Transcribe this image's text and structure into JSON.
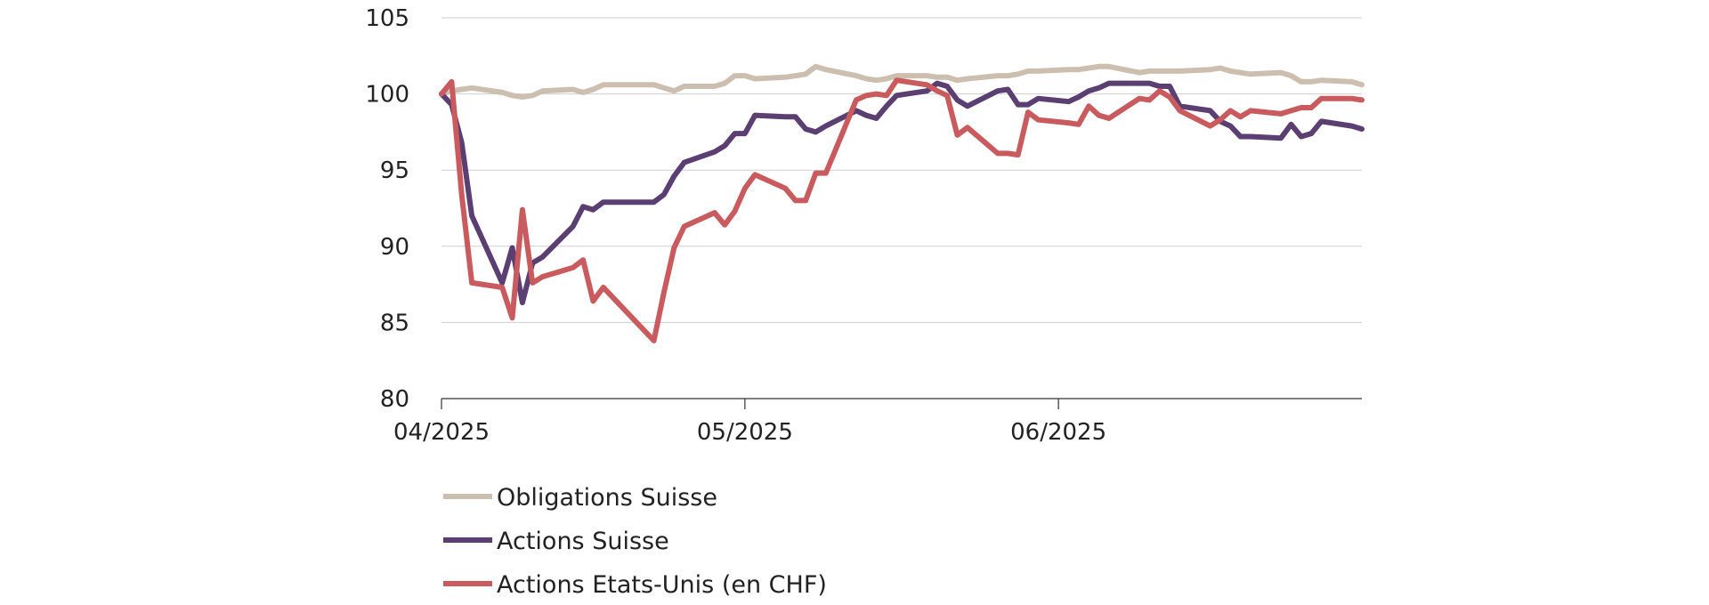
{
  "chart_data": {
    "type": "line",
    "title": "",
    "xlabel": "",
    "ylabel": "",
    "xlim": [
      "2025-04-01",
      "2025-07-01"
    ],
    "ylim": [
      80,
      105
    ],
    "yticks": [
      80,
      85,
      90,
      95,
      100,
      105
    ],
    "xticks": [
      {
        "date": "2025-04-01",
        "label": "04/2025"
      },
      {
        "date": "2025-05-01",
        "label": "05/2025"
      },
      {
        "date": "2025-06-01",
        "label": "06/2025"
      }
    ],
    "grid": "horizontal",
    "legend_position": "bottom-left",
    "series": [
      {
        "name": "Obligations Suisse",
        "color": "#cdbfb0",
        "points": [
          [
            "2025-04-01",
            100.0
          ],
          [
            "2025-04-02",
            100.2
          ],
          [
            "2025-04-03",
            100.3
          ],
          [
            "2025-04-04",
            100.4
          ],
          [
            "2025-04-07",
            100.1
          ],
          [
            "2025-04-08",
            99.9
          ],
          [
            "2025-04-09",
            99.8
          ],
          [
            "2025-04-10",
            99.9
          ],
          [
            "2025-04-11",
            100.2
          ],
          [
            "2025-04-14",
            100.3
          ],
          [
            "2025-04-15",
            100.1
          ],
          [
            "2025-04-16",
            100.3
          ],
          [
            "2025-04-17",
            100.6
          ],
          [
            "2025-04-22",
            100.6
          ],
          [
            "2025-04-23",
            100.4
          ],
          [
            "2025-04-24",
            100.2
          ],
          [
            "2025-04-25",
            100.5
          ],
          [
            "2025-04-28",
            100.5
          ],
          [
            "2025-04-29",
            100.7
          ],
          [
            "2025-04-30",
            101.2
          ],
          [
            "2025-05-01",
            101.2
          ],
          [
            "2025-05-02",
            101.0
          ],
          [
            "2025-05-05",
            101.1
          ],
          [
            "2025-05-06",
            101.2
          ],
          [
            "2025-05-07",
            101.3
          ],
          [
            "2025-05-08",
            101.8
          ],
          [
            "2025-05-09",
            101.6
          ],
          [
            "2025-05-12",
            101.2
          ],
          [
            "2025-05-13",
            101.0
          ],
          [
            "2025-05-14",
            100.9
          ],
          [
            "2025-05-15",
            101.0
          ],
          [
            "2025-05-16",
            101.2
          ],
          [
            "2025-05-19",
            101.2
          ],
          [
            "2025-05-20",
            101.1
          ],
          [
            "2025-05-21",
            101.1
          ],
          [
            "2025-05-22",
            100.9
          ],
          [
            "2025-05-23",
            101.0
          ],
          [
            "2025-05-26",
            101.2
          ],
          [
            "2025-05-27",
            101.2
          ],
          [
            "2025-05-28",
            101.3
          ],
          [
            "2025-05-29",
            101.5
          ],
          [
            "2025-05-30",
            101.5
          ],
          [
            "2025-06-02",
            101.6
          ],
          [
            "2025-06-03",
            101.6
          ],
          [
            "2025-06-04",
            101.7
          ],
          [
            "2025-06-05",
            101.8
          ],
          [
            "2025-06-06",
            101.8
          ],
          [
            "2025-06-09",
            101.4
          ],
          [
            "2025-06-10",
            101.5
          ],
          [
            "2025-06-11",
            101.5
          ],
          [
            "2025-06-12",
            101.5
          ],
          [
            "2025-06-13",
            101.5
          ],
          [
            "2025-06-16",
            101.6
          ],
          [
            "2025-06-17",
            101.7
          ],
          [
            "2025-06-18",
            101.5
          ],
          [
            "2025-06-19",
            101.4
          ],
          [
            "2025-06-20",
            101.3
          ],
          [
            "2025-06-23",
            101.4
          ],
          [
            "2025-06-24",
            101.2
          ],
          [
            "2025-06-25",
            100.8
          ],
          [
            "2025-06-26",
            100.8
          ],
          [
            "2025-06-27",
            100.9
          ],
          [
            "2025-06-30",
            100.8
          ],
          [
            "2025-07-01",
            100.6
          ]
        ]
      },
      {
        "name": "Actions Suisse",
        "color": "#5b3f72",
        "points": [
          [
            "2025-04-01",
            100.0
          ],
          [
            "2025-04-02",
            99.3
          ],
          [
            "2025-04-03",
            96.8
          ],
          [
            "2025-04-04",
            92.0
          ],
          [
            "2025-04-07",
            87.6
          ],
          [
            "2025-04-08",
            89.9
          ],
          [
            "2025-04-09",
            86.3
          ],
          [
            "2025-04-10",
            88.9
          ],
          [
            "2025-04-11",
            89.3
          ],
          [
            "2025-04-14",
            91.3
          ],
          [
            "2025-04-15",
            92.6
          ],
          [
            "2025-04-16",
            92.4
          ],
          [
            "2025-04-17",
            92.9
          ],
          [
            "2025-04-22",
            92.9
          ],
          [
            "2025-04-23",
            93.4
          ],
          [
            "2025-04-24",
            94.6
          ],
          [
            "2025-04-25",
            95.5
          ],
          [
            "2025-04-28",
            96.2
          ],
          [
            "2025-04-29",
            96.6
          ],
          [
            "2025-04-30",
            97.4
          ],
          [
            "2025-05-01",
            97.4
          ],
          [
            "2025-05-02",
            98.6
          ],
          [
            "2025-05-05",
            98.5
          ],
          [
            "2025-05-06",
            98.5
          ],
          [
            "2025-05-07",
            97.7
          ],
          [
            "2025-05-08",
            97.5
          ],
          [
            "2025-05-09",
            97.9
          ],
          [
            "2025-05-12",
            98.9
          ],
          [
            "2025-05-13",
            98.6
          ],
          [
            "2025-05-14",
            98.4
          ],
          [
            "2025-05-15",
            99.2
          ],
          [
            "2025-05-16",
            99.9
          ],
          [
            "2025-05-19",
            100.2
          ],
          [
            "2025-05-20",
            100.7
          ],
          [
            "2025-05-21",
            100.5
          ],
          [
            "2025-05-22",
            99.6
          ],
          [
            "2025-05-23",
            99.2
          ],
          [
            "2025-05-26",
            100.2
          ],
          [
            "2025-05-27",
            100.3
          ],
          [
            "2025-05-28",
            99.3
          ],
          [
            "2025-05-29",
            99.3
          ],
          [
            "2025-05-30",
            99.7
          ],
          [
            "2025-06-02",
            99.5
          ],
          [
            "2025-06-03",
            99.8
          ],
          [
            "2025-06-04",
            100.2
          ],
          [
            "2025-06-05",
            100.4
          ],
          [
            "2025-06-06",
            100.7
          ],
          [
            "2025-06-09",
            100.7
          ],
          [
            "2025-06-10",
            100.7
          ],
          [
            "2025-06-11",
            100.5
          ],
          [
            "2025-06-12",
            100.5
          ],
          [
            "2025-06-13",
            99.2
          ],
          [
            "2025-06-16",
            98.9
          ],
          [
            "2025-06-17",
            98.2
          ],
          [
            "2025-06-18",
            97.9
          ],
          [
            "2025-06-19",
            97.2
          ],
          [
            "2025-06-20",
            97.2
          ],
          [
            "2025-06-23",
            97.1
          ],
          [
            "2025-06-24",
            98.0
          ],
          [
            "2025-06-25",
            97.2
          ],
          [
            "2025-06-26",
            97.4
          ],
          [
            "2025-06-27",
            98.2
          ],
          [
            "2025-06-30",
            97.9
          ],
          [
            "2025-07-01",
            97.7
          ]
        ]
      },
      {
        "name": "Actions Etats-Unis (en CHF)",
        "color": "#c95a5e",
        "points": [
          [
            "2025-04-01",
            100.0
          ],
          [
            "2025-04-02",
            100.8
          ],
          [
            "2025-04-03",
            93.4
          ],
          [
            "2025-04-04",
            87.6
          ],
          [
            "2025-04-07",
            87.3
          ],
          [
            "2025-04-08",
            85.3
          ],
          [
            "2025-04-09",
            92.4
          ],
          [
            "2025-04-10",
            87.6
          ],
          [
            "2025-04-11",
            88.0
          ],
          [
            "2025-04-14",
            88.6
          ],
          [
            "2025-04-15",
            89.1
          ],
          [
            "2025-04-16",
            86.4
          ],
          [
            "2025-04-17",
            87.3
          ],
          [
            "2025-04-22",
            83.8
          ],
          [
            "2025-04-23",
            87.0
          ],
          [
            "2025-04-24",
            89.9
          ],
          [
            "2025-04-25",
            91.3
          ],
          [
            "2025-04-28",
            92.2
          ],
          [
            "2025-04-29",
            91.4
          ],
          [
            "2025-04-30",
            92.3
          ],
          [
            "2025-05-01",
            93.8
          ],
          [
            "2025-05-02",
            94.7
          ],
          [
            "2025-05-05",
            93.8
          ],
          [
            "2025-05-06",
            93.0
          ],
          [
            "2025-05-07",
            93.0
          ],
          [
            "2025-05-08",
            94.8
          ],
          [
            "2025-05-09",
            94.8
          ],
          [
            "2025-05-12",
            99.6
          ],
          [
            "2025-05-13",
            99.9
          ],
          [
            "2025-05-14",
            100.0
          ],
          [
            "2025-05-15",
            99.9
          ],
          [
            "2025-05-16",
            100.9
          ],
          [
            "2025-05-19",
            100.6
          ],
          [
            "2025-05-20",
            100.2
          ],
          [
            "2025-05-21",
            99.9
          ],
          [
            "2025-05-22",
            97.3
          ],
          [
            "2025-05-23",
            97.8
          ],
          [
            "2025-05-26",
            96.1
          ],
          [
            "2025-05-27",
            96.1
          ],
          [
            "2025-05-28",
            96.0
          ],
          [
            "2025-05-29",
            98.8
          ],
          [
            "2025-05-30",
            98.3
          ],
          [
            "2025-06-02",
            98.1
          ],
          [
            "2025-06-03",
            98.0
          ],
          [
            "2025-06-04",
            99.2
          ],
          [
            "2025-06-05",
            98.6
          ],
          [
            "2025-06-06",
            98.4
          ],
          [
            "2025-06-09",
            99.7
          ],
          [
            "2025-06-10",
            99.6
          ],
          [
            "2025-06-11",
            100.2
          ],
          [
            "2025-06-12",
            99.8
          ],
          [
            "2025-06-13",
            98.9
          ],
          [
            "2025-06-16",
            97.9
          ],
          [
            "2025-06-17",
            98.3
          ],
          [
            "2025-06-18",
            98.9
          ],
          [
            "2025-06-19",
            98.5
          ],
          [
            "2025-06-20",
            98.9
          ],
          [
            "2025-06-23",
            98.7
          ],
          [
            "2025-06-24",
            98.9
          ],
          [
            "2025-06-25",
            99.1
          ],
          [
            "2025-06-26",
            99.1
          ],
          [
            "2025-06-27",
            99.7
          ],
          [
            "2025-06-30",
            99.7
          ],
          [
            "2025-07-01",
            99.6
          ]
        ]
      }
    ]
  }
}
